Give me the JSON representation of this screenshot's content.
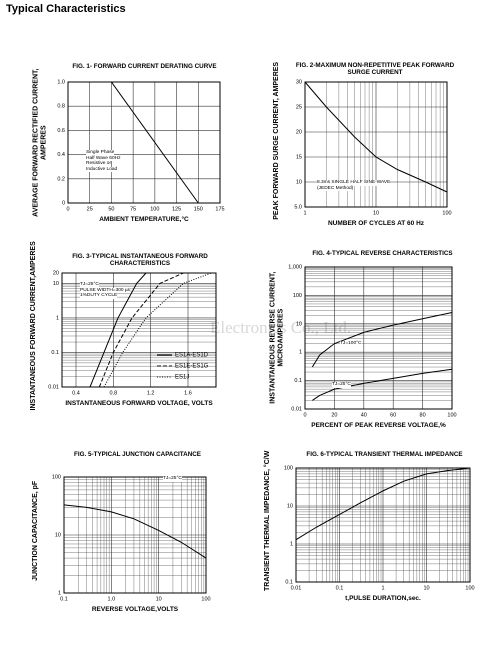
{
  "title": "Typical Characteristics",
  "watermark": "Electronics Co., Ltd.",
  "chart_data": [
    {
      "type": "line",
      "title": "FIG. 1- FORWARD CURRENT DERATING CURVE",
      "xlabel": "AMBIENT TEMPERATURE,°C",
      "ylabel": "AVERAGE FORWARD RECTIFIED CURRENT, AMPERES",
      "xlim": [
        0,
        175
      ],
      "xticks": [
        0,
        25,
        50,
        75,
        100,
        125,
        150,
        175
      ],
      "ylim": [
        0,
        1
      ],
      "yticks": [
        0,
        0.2,
        0.4,
        0.6,
        0.8,
        {
          "value": 1,
          "label": "1.0"
        }
      ],
      "grid": true,
      "series": [
        {
          "x": [
            0,
            50,
            150
          ],
          "values": [
            1,
            1,
            0
          ],
          "color": "#000000"
        }
      ],
      "annotations": [
        "Single Phase",
        "Half Wave 60Hz",
        "Resistive or",
        "Inductive Load"
      ]
    },
    {
      "type": "line",
      "title": "FIG. 2-MAXIMUM NON-REPETITIVE PEAK FORWARD SURGE CURRENT",
      "xlabel": "NUMBER OF CYCLES AT 60 Hz",
      "ylabel": "PEAK FORWARD SURGE CURRENT, AMPERES",
      "xscale": "log",
      "xlim": [
        1,
        100
      ],
      "xticks": [
        1,
        10,
        100
      ],
      "ylim": [
        5,
        30
      ],
      "yticks": [
        {
          "value": 5,
          "label": "5.0"
        },
        10,
        15,
        20,
        25,
        30
      ],
      "grid": true,
      "series": [
        {
          "x": [
            1,
            2,
            5,
            10,
            20,
            50,
            100
          ],
          "values": [
            30,
            25,
            19,
            15,
            12.5,
            10,
            8
          ],
          "color": "#000000"
        }
      ],
      "annotations": [
        "8.3ms SINGLE HALF SINE-WAVE",
        "(JEDEC Method)"
      ]
    },
    {
      "type": "line",
      "title": "FIG. 3-TYPICAL INSTANTANEOUS FORWARD CHARACTERISTICS",
      "xlabel": "INSTANTANEOUS FORWARD VOLTAGE, VOLTS",
      "ylabel": "INSTANTANEOUS FORWARD CURRENT,AMPERES",
      "xlim": [
        0.25,
        1.9
      ],
      "xticks": [
        0.4,
        0.8,
        1.2,
        1.6
      ],
      "yscale": "log",
      "ylim": [
        0.01,
        20
      ],
      "yticks": [
        0.01,
        0.1,
        1,
        10,
        20
      ],
      "grid": true,
      "legend": "lower right",
      "series": [
        {
          "name": "ES1A-ES1D",
          "linestyle": "solid",
          "color": "#000000",
          "x": [
            0.55,
            0.7,
            0.85,
            1.05,
            1.15
          ],
          "values": [
            0.01,
            0.1,
            1,
            10,
            20
          ]
        },
        {
          "name": "ES1E-ES1G",
          "linestyle": "dashed",
          "color": "#000000",
          "x": [
            0.65,
            0.8,
            1.0,
            1.3,
            1.55
          ],
          "values": [
            0.01,
            0.1,
            1,
            10,
            20
          ]
        },
        {
          "name": "ES1J",
          "linestyle": "dotted",
          "color": "#000000",
          "x": [
            0.7,
            0.9,
            1.15,
            1.55,
            1.85
          ],
          "values": [
            0.01,
            0.1,
            1,
            10,
            20
          ]
        }
      ],
      "annotations": [
        "TJ=25°C",
        "PULSE WIDTH=300 µs",
        "1%DUTY CYCLE"
      ]
    },
    {
      "type": "line",
      "title": "FIG. 4-TYPICAL REVERSE CHARACTERISTICS",
      "xlabel": "PERCENT OF PEAK REVERSE VOLTAGE,%",
      "ylabel": "INSTANTANEOUS REVERSE CURRENT, MICROAMPERES",
      "xlim": [
        0,
        100
      ],
      "xticks": [
        0,
        20,
        40,
        60,
        80,
        100
      ],
      "yscale": "log",
      "ylim": [
        0.01,
        1000
      ],
      "yticks": [
        0.01,
        0.1,
        1,
        10,
        100,
        {
          "value": 1000,
          "label": "1,000"
        }
      ],
      "grid": true,
      "series": [
        {
          "color": "#000000",
          "x": [
            5,
            10,
            20,
            40,
            60,
            80,
            100
          ],
          "values": [
            0.3,
            0.8,
            2,
            5,
            9,
            15,
            25
          ]
        },
        {
          "color": "#000000",
          "x": [
            5,
            10,
            20,
            40,
            60,
            80,
            100
          ],
          "values": [
            0.02,
            0.03,
            0.05,
            0.08,
            0.12,
            0.18,
            0.25
          ]
        }
      ],
      "annotations": [
        "TJ=100°C",
        "TJ=25°C"
      ]
    },
    {
      "type": "line",
      "title": "FIG. 5-TYPICAL JUNCTION CAPACITANCE",
      "xlabel": "REVERSE VOLTAGE,VOLTS",
      "ylabel": "JUNCTION CAPACITANCE, pF",
      "xscale": "log",
      "xlim": [
        0.1,
        100
      ],
      "xticks": [
        0.1,
        {
          "value": 1,
          "label": "1.0"
        },
        10,
        100
      ],
      "yscale": "log",
      "ylim": [
        1,
        100
      ],
      "yticks": [
        1,
        10,
        100
      ],
      "grid": true,
      "series": [
        {
          "color": "#000000",
          "x": [
            0.1,
            0.3,
            1,
            3,
            10,
            30,
            100
          ],
          "values": [
            33,
            30,
            25,
            19,
            12,
            7.5,
            4
          ]
        }
      ],
      "annotations": [
        "TJ=25°C"
      ]
    },
    {
      "type": "line",
      "title": "FIG. 6-TYPICAL TRANSIENT THERMAL IMPEDANCE",
      "xlabel": "t,PULSE DURATION,sec.",
      "ylabel": "TRANSIENT THERMAL IMPEDANCE, °C/W",
      "xscale": "log",
      "xlim": [
        0.01,
        100
      ],
      "xticks": [
        0.01,
        0.1,
        1,
        10,
        100
      ],
      "yscale": "log",
      "ylim": [
        0.1,
        100
      ],
      "yticks": [
        0.1,
        1,
        10,
        100
      ],
      "grid": true,
      "series": [
        {
          "color": "#000000",
          "x": [
            0.01,
            0.03,
            0.1,
            0.3,
            1,
            3,
            10,
            30,
            100
          ],
          "values": [
            1.3,
            2.8,
            6,
            12,
            25,
            45,
            70,
            85,
            100
          ]
        }
      ]
    }
  ]
}
